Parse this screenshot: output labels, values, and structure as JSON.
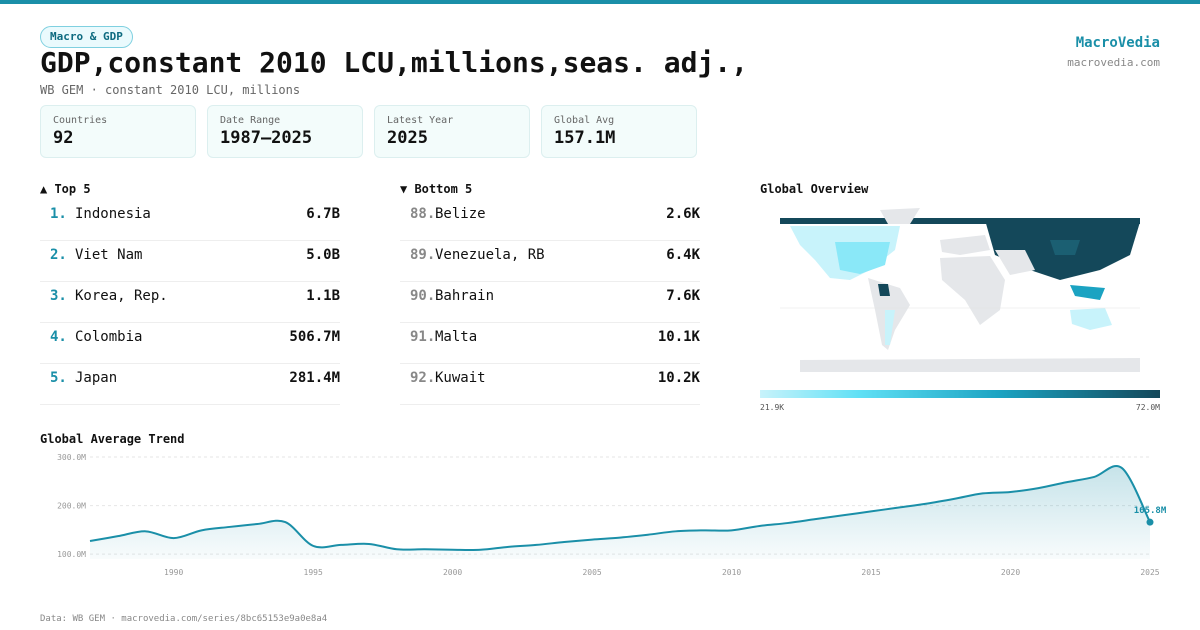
{
  "header": {
    "badge": "Macro & GDP",
    "title": "GDP,constant 2010 LCU,millions,seas. adj.,",
    "subtitle": "WB GEM · constant 2010 LCU, millions",
    "brand": "MacroVedia",
    "site": "macrovedia.com"
  },
  "stats": [
    {
      "label": "Countries",
      "value": "92"
    },
    {
      "label": "Date Range",
      "value": "1987–2025"
    },
    {
      "label": "Latest Year",
      "value": "2025"
    },
    {
      "label": "Global Avg",
      "value": "157.1M"
    }
  ],
  "top": {
    "title": "▲ Top 5",
    "rows": [
      {
        "rank": "1.",
        "name": "Indonesia",
        "value": "6.7B"
      },
      {
        "rank": "2.",
        "name": "Viet Nam",
        "value": "5.0B"
      },
      {
        "rank": "3.",
        "name": "Korea, Rep.",
        "value": "1.1B"
      },
      {
        "rank": "4.",
        "name": "Colombia",
        "value": "506.7M"
      },
      {
        "rank": "5.",
        "name": "Japan",
        "value": "281.4M"
      }
    ]
  },
  "bottom": {
    "title": "▼ Bottom 5",
    "rows": [
      {
        "rank": "88.",
        "name": "Belize",
        "value": "2.6K"
      },
      {
        "rank": "89.",
        "name": "Venezuela, RB",
        "value": "6.4K"
      },
      {
        "rank": "90.",
        "name": "Bahrain",
        "value": "7.6K"
      },
      {
        "rank": "91.",
        "name": "Malta",
        "value": "10.1K"
      },
      {
        "rank": "92.",
        "name": "Kuwait",
        "value": "10.2K"
      }
    ]
  },
  "map": {
    "title": "Global Overview",
    "legend_min": "21.9K",
    "legend_max": "72.0M"
  },
  "chart_data": {
    "type": "area",
    "title": "Global Average Trend",
    "x": [
      1987,
      1988,
      1989,
      1990,
      1991,
      1992,
      1993,
      1994,
      1995,
      1996,
      1997,
      1998,
      1999,
      2000,
      2001,
      2002,
      2003,
      2004,
      2005,
      2006,
      2007,
      2008,
      2009,
      2010,
      2011,
      2012,
      2013,
      2014,
      2015,
      2016,
      2017,
      2018,
      2019,
      2020,
      2021,
      2022,
      2023,
      2024,
      2025
    ],
    "values": [
      127,
      137,
      147,
      133,
      149,
      156,
      162,
      166,
      117,
      119,
      121,
      110,
      110,
      109,
      109,
      115,
      119,
      125,
      130,
      134,
      140,
      147,
      149,
      149,
      158,
      164,
      172,
      180,
      188,
      196,
      204,
      214,
      225,
      228,
      236,
      248,
      259,
      277,
      165.8
    ],
    "value_labels": [
      null,
      null,
      null,
      null,
      null,
      null,
      null,
      null,
      null,
      null,
      null,
      null,
      null,
      null,
      null,
      null,
      null,
      null,
      null,
      null,
      null,
      null,
      null,
      null,
      null,
      null,
      null,
      null,
      null,
      null,
      null,
      null,
      null,
      null,
      null,
      null,
      null,
      null,
      "165.8M"
    ],
    "color": "#1a8fa8",
    "xlim": [
      1987,
      2025
    ],
    "ylim": [
      90,
      300
    ],
    "xticks": [
      1990,
      1995,
      2000,
      2005,
      2010,
      2015,
      2020,
      2025
    ],
    "yticks": [
      {
        "value": 100,
        "label": "100.0M"
      },
      {
        "value": 200,
        "label": "200.0M"
      },
      {
        "value": 300,
        "label": "300.0M"
      }
    ],
    "grid": true
  },
  "footer": "Data: WB GEM · macrovedia.com/series/8bc65153e9a0e8a4"
}
